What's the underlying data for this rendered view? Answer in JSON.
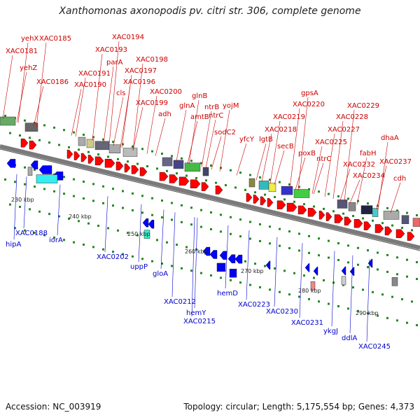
{
  "header": {
    "title": "Xanthomonas axonopodis pv. citri str. 306, complete genome"
  },
  "footer": {
    "accession": "Accession: NC_003919",
    "summary": "Topology: circular; Length: 5,175,554 bp; Genes: 4,373"
  },
  "colors": {
    "top_label": "#cc0000",
    "bottom_label": "#0000cc",
    "forward_cds": "#ff0000",
    "reverse_cds": "#0000ff",
    "backbone": "#777777",
    "dots": "#228822"
  },
  "scale_ticks": [
    "230 kbp",
    "240 kbp",
    "250 kbp",
    "260 kbp",
    "270 kbp",
    "280 kbp",
    "290 kbp"
  ],
  "top_genes": [
    "XAC0181",
    "yehX",
    "XAC0185",
    "yehZ",
    "XAC0186",
    "XAC0190",
    "XAC0191",
    "parA",
    "XAC0193",
    "XAC0194",
    "cls",
    "XAC0196",
    "XAC0197",
    "XAC0198",
    "XAC0199",
    "adh",
    "XAC0200",
    "glnA",
    "amtB",
    "glnB",
    "ntrB",
    "ntrC",
    "yojM",
    "sodC2",
    "yfcY",
    "lgtB",
    "XAC0218",
    "XAC0219",
    "secB",
    "XAC0220",
    "gpsA",
    "poxB",
    "ntrC",
    "XAC0225",
    "XAC0227",
    "XAC0228",
    "XAC0229",
    "XAC0232",
    "fabH",
    "XAC0234",
    "dhaA",
    "XAC0237",
    "cdh"
  ],
  "bottom_genes": [
    "hipA",
    "XAC0188",
    "iorA",
    "XAC0202",
    "uppP",
    "gloA",
    "XAC0212",
    "hemY",
    "XAC0215",
    "hemD",
    "XAC0223",
    "XAC0230",
    "XAC0231",
    "ykgJ",
    "ddlA",
    "XAC0245"
  ]
}
